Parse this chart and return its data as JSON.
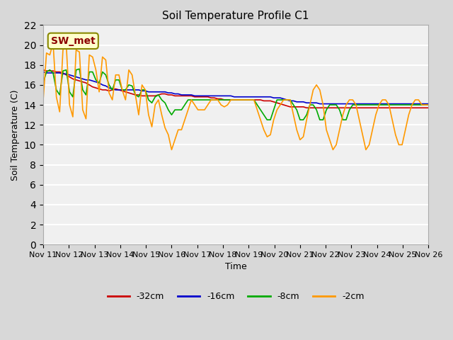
{
  "title": "Soil Temperature Profile C1",
  "xlabel": "Time",
  "ylabel": "Soil Temperature (C)",
  "annotation": "SW_met",
  "ylim": [
    0,
    22
  ],
  "yticks": [
    0,
    2,
    4,
    6,
    8,
    10,
    12,
    14,
    16,
    18,
    20,
    22
  ],
  "x_labels": [
    "Nov 11",
    "Nov 12",
    "Nov 13",
    "Nov 14",
    "Nov 15",
    "Nov 16",
    "Nov 17",
    "Nov 18",
    "Nov 19",
    "Nov 20",
    "Nov 21",
    "Nov 22",
    "Nov 23",
    "Nov 24",
    "Nov 25",
    "Nov 26"
  ],
  "colors": {
    "-32cm": "#cc0000",
    "-16cm": "#0000cc",
    "-8cm": "#00aa00",
    "-2cm": "#ff9900"
  },
  "background_color": "#e8e8e8",
  "plot_bg_color": "#f0f0f0",
  "series": {
    "-32cm": [
      17.5,
      17.4,
      17.4,
      17.4,
      17.3,
      17.3,
      17.2,
      17.0,
      16.8,
      16.6,
      16.5,
      16.4,
      16.3,
      16.2,
      16.0,
      15.8,
      15.7,
      15.6,
      15.5,
      15.5,
      15.4,
      15.5,
      15.6,
      15.5,
      15.4,
      15.3,
      15.2,
      15.1,
      15.0,
      15.0,
      14.9,
      14.9,
      14.9,
      14.9,
      14.9,
      15.0,
      15.1,
      15.1,
      15.0,
      15.0,
      14.9,
      14.9,
      14.9,
      14.9,
      14.9,
      14.9,
      14.8,
      14.8,
      14.8,
      14.8,
      14.8,
      14.7,
      14.7,
      14.6,
      14.6,
      14.5,
      14.5,
      14.5,
      14.5,
      14.5,
      14.5,
      14.5,
      14.5,
      14.5,
      14.5,
      14.5,
      14.5,
      14.4,
      14.4,
      14.4,
      14.3,
      14.2,
      14.1,
      14.0,
      13.9,
      13.8,
      13.8,
      13.8,
      13.8,
      13.8,
      13.7,
      13.7,
      13.7,
      13.7,
      13.7,
      13.7,
      13.7,
      13.7,
      13.7,
      13.7,
      13.7,
      13.7,
      13.7,
      13.7,
      13.7,
      13.7,
      13.7,
      13.7,
      13.7,
      13.7,
      13.7,
      13.7,
      13.7,
      13.7,
      13.7,
      13.7,
      13.7,
      13.7,
      13.7,
      13.7,
      13.7,
      13.7,
      13.7,
      13.7,
      13.7,
      13.7,
      13.7,
      13.7
    ],
    "-16cm": [
      17.3,
      17.2,
      17.2,
      17.2,
      17.2,
      17.2,
      17.1,
      17.1,
      17.0,
      16.9,
      16.8,
      16.7,
      16.6,
      16.5,
      16.5,
      16.4,
      16.3,
      16.2,
      16.0,
      15.9,
      15.7,
      15.6,
      15.5,
      15.5,
      15.5,
      15.5,
      15.5,
      15.5,
      15.5,
      15.5,
      15.4,
      15.4,
      15.3,
      15.3,
      15.3,
      15.3,
      15.3,
      15.3,
      15.2,
      15.2,
      15.1,
      15.1,
      15.0,
      15.0,
      15.0,
      15.0,
      14.9,
      14.9,
      14.9,
      14.9,
      14.9,
      14.9,
      14.9,
      14.9,
      14.9,
      14.9,
      14.9,
      14.9,
      14.8,
      14.8,
      14.8,
      14.8,
      14.8,
      14.8,
      14.8,
      14.8,
      14.8,
      14.8,
      14.8,
      14.8,
      14.7,
      14.7,
      14.7,
      14.6,
      14.5,
      14.4,
      14.4,
      14.3,
      14.3,
      14.3,
      14.2,
      14.2,
      14.2,
      14.2,
      14.1,
      14.1,
      14.1,
      14.1,
      14.1,
      14.1,
      14.1,
      14.1,
      14.1,
      14.1,
      14.1,
      14.1,
      14.1,
      14.1,
      14.1,
      14.1,
      14.1,
      14.1,
      14.1,
      14.1,
      14.1,
      14.1,
      14.1,
      14.1,
      14.1,
      14.1,
      14.1,
      14.1,
      14.1,
      14.1,
      14.1,
      14.1,
      14.1,
      14.1
    ],
    "-8cm": [
      16.2,
      17.3,
      17.5,
      17.2,
      15.5,
      15.0,
      17.4,
      17.5,
      15.3,
      14.8,
      17.5,
      17.6,
      15.5,
      15.0,
      17.3,
      17.3,
      16.5,
      16.2,
      17.3,
      17.0,
      16.0,
      15.5,
      16.5,
      16.5,
      15.5,
      15.5,
      16.0,
      15.9,
      15.0,
      14.8,
      15.5,
      15.5,
      14.5,
      14.2,
      14.8,
      15.0,
      14.5,
      14.2,
      13.5,
      13.0,
      13.5,
      13.5,
      13.5,
      14.0,
      14.5,
      14.5,
      14.5,
      14.5,
      14.5,
      14.5,
      14.5,
      14.5,
      14.5,
      14.5,
      14.5,
      14.5,
      14.5,
      14.5,
      14.5,
      14.5,
      14.5,
      14.5,
      14.5,
      14.5,
      14.5,
      14.0,
      13.5,
      13.0,
      12.5,
      12.5,
      13.5,
      14.5,
      14.5,
      14.5,
      14.5,
      14.5,
      14.0,
      13.5,
      12.5,
      12.5,
      13.0,
      14.0,
      14.0,
      13.5,
      12.5,
      12.5,
      13.5,
      14.0,
      14.0,
      14.0,
      13.5,
      12.5,
      12.5,
      13.5,
      14.0,
      14.0,
      14.0,
      14.0,
      14.0,
      14.0,
      14.0,
      14.0,
      14.0,
      14.0,
      14.0,
      14.0,
      14.0,
      14.0,
      14.0,
      14.0,
      14.0,
      14.0,
      14.0,
      14.0,
      14.0,
      14.0,
      14.0,
      14.0
    ],
    "-2cm": [
      14.5,
      19.2,
      19.0,
      20.2,
      14.8,
      13.3,
      19.5,
      20.0,
      14.0,
      12.8,
      19.5,
      19.3,
      13.5,
      12.6,
      19.0,
      18.8,
      17.5,
      15.3,
      18.8,
      18.5,
      15.2,
      14.5,
      17.0,
      17.0,
      15.5,
      14.5,
      17.5,
      17.0,
      15.0,
      13.0,
      16.0,
      15.5,
      13.0,
      11.8,
      14.0,
      14.5,
      13.0,
      11.7,
      11.0,
      9.5,
      10.5,
      11.5,
      11.5,
      12.5,
      13.5,
      14.5,
      14.0,
      13.5,
      13.5,
      13.5,
      14.0,
      14.5,
      14.5,
      14.5,
      14.0,
      13.8,
      14.0,
      14.5,
      14.5,
      14.5,
      14.5,
      14.5,
      14.5,
      14.5,
      14.5,
      13.5,
      12.5,
      11.5,
      10.8,
      11.0,
      12.5,
      13.5,
      14.0,
      14.5,
      14.5,
      14.5,
      13.0,
      11.5,
      10.5,
      10.8,
      12.5,
      14.0,
      15.5,
      16.0,
      15.5,
      14.0,
      11.5,
      10.5,
      9.5,
      10.0,
      11.5,
      13.0,
      14.0,
      14.5,
      14.5,
      14.0,
      12.5,
      11.0,
      9.5,
      10.0,
      11.5,
      13.0,
      14.0,
      14.5,
      14.5,
      14.0,
      12.5,
      11.0,
      10.0,
      10.0,
      11.5,
      13.0,
      14.0,
      14.5,
      14.5,
      14.0,
      14.0,
      14.0
    ]
  }
}
